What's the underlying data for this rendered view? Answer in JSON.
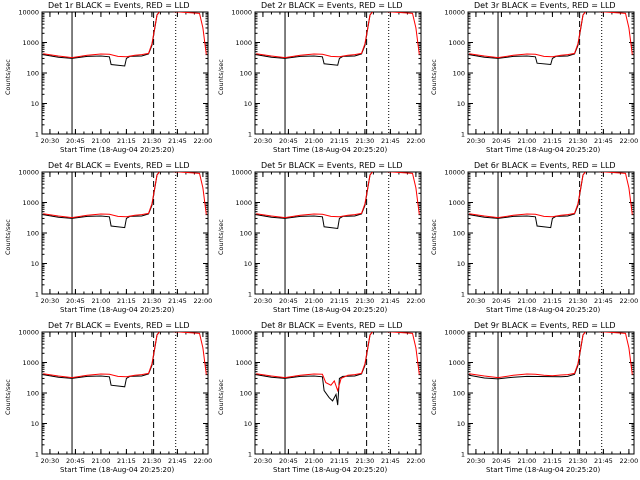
{
  "figure": {
    "xlabel": "Start Time (18-Aug-04 20:25:20)",
    "ylabel": "Counts/sec",
    "x_ticks": [
      "20:30",
      "20:45",
      "21:00",
      "21:15",
      "21:30",
      "21:45",
      "22:00"
    ],
    "y_ticks": [
      "1",
      "10",
      "100",
      "1000",
      "10000"
    ],
    "colors": {
      "events": "#000000",
      "lld": "#ff0000",
      "axes": "#000000"
    }
  },
  "chart_data": [
    {
      "type": "line",
      "title": "Det 1r  BLACK = Events, RED = LLD",
      "xlim": [
        "20:25:20",
        "22:03:00"
      ],
      "ylim": [
        1,
        10000
      ],
      "yscale": "log",
      "markers": {
        "solid": "20:43",
        "dashed": "21:31",
        "dotted": "21:44"
      },
      "series": [
        {
          "name": "Events",
          "x": [
            "20:26",
            "20:35",
            "20:43",
            "20:52",
            "21:00",
            "21:05",
            "21:06",
            "21:14",
            "21:15",
            "21:17",
            "21:24",
            "21:28",
            "21:30",
            "21:33",
            "21:35"
          ],
          "values": [
            400,
            330,
            300,
            350,
            360,
            340,
            190,
            170,
            300,
            350,
            360,
            420,
            800,
            8000,
            11000
          ]
        },
        {
          "name": "LLD",
          "x": [
            "20:26",
            "20:35",
            "20:43",
            "20:52",
            "21:00",
            "21:05",
            "21:10",
            "21:15",
            "21:20",
            "21:24",
            "21:28",
            "21:30",
            "21:33",
            "21:35",
            "21:58",
            "22:00",
            "22:02"
          ],
          "values": [
            430,
            360,
            320,
            380,
            420,
            410,
            350,
            340,
            380,
            400,
            440,
            900,
            8000,
            11000,
            9000,
            3000,
            400
          ]
        }
      ]
    },
    {
      "type": "line",
      "title": "Det 2r  BLACK = Events, RED = LLD",
      "xlim": [
        "20:25:20",
        "22:03:00"
      ],
      "ylim": [
        1,
        10000
      ],
      "yscale": "log",
      "markers": {
        "solid": "20:43",
        "dashed": "21:31",
        "dotted": "21:44"
      },
      "series": [
        {
          "name": "Events",
          "x": [
            "20:26",
            "20:35",
            "20:43",
            "20:52",
            "21:00",
            "21:05",
            "21:06",
            "21:14",
            "21:15",
            "21:17",
            "21:24",
            "21:28",
            "21:30",
            "21:33",
            "21:35"
          ],
          "values": [
            400,
            330,
            300,
            350,
            360,
            340,
            200,
            180,
            300,
            350,
            360,
            420,
            800,
            8000,
            11000
          ]
        },
        {
          "name": "LLD",
          "x": [
            "20:26",
            "20:35",
            "20:43",
            "20:52",
            "21:00",
            "21:05",
            "21:10",
            "21:15",
            "21:20",
            "21:24",
            "21:28",
            "21:30",
            "21:33",
            "21:35",
            "21:58",
            "22:00",
            "22:02"
          ],
          "values": [
            430,
            360,
            320,
            380,
            420,
            410,
            350,
            340,
            380,
            400,
            440,
            900,
            8000,
            11000,
            9000,
            3000,
            400
          ]
        }
      ]
    },
    {
      "type": "line",
      "title": "Det 3r  BLACK = Events, RED = LLD",
      "xlim": [
        "20:25:20",
        "22:03:00"
      ],
      "ylim": [
        1,
        10000
      ],
      "yscale": "log",
      "markers": {
        "solid": "20:43",
        "dashed": "21:31",
        "dotted": "21:44"
      },
      "series": [
        {
          "name": "Events",
          "x": [
            "20:26",
            "20:35",
            "20:43",
            "20:52",
            "21:00",
            "21:05",
            "21:06",
            "21:14",
            "21:15",
            "21:17",
            "21:24",
            "21:28",
            "21:30",
            "21:33",
            "21:35"
          ],
          "values": [
            400,
            330,
            300,
            350,
            360,
            340,
            210,
            190,
            300,
            350,
            360,
            420,
            800,
            8000,
            11000
          ]
        },
        {
          "name": "LLD",
          "x": [
            "20:26",
            "20:35",
            "20:43",
            "20:52",
            "21:00",
            "21:05",
            "21:10",
            "21:15",
            "21:20",
            "21:24",
            "21:28",
            "21:30",
            "21:33",
            "21:35",
            "21:58",
            "22:00",
            "22:02"
          ],
          "values": [
            430,
            360,
            320,
            380,
            420,
            410,
            350,
            340,
            380,
            400,
            440,
            900,
            8000,
            11000,
            9000,
            3000,
            400
          ]
        }
      ]
    },
    {
      "type": "line",
      "title": "Det 4r  BLACK = Events, RED = LLD",
      "xlim": [
        "20:25:20",
        "22:03:00"
      ],
      "ylim": [
        1,
        10000
      ],
      "yscale": "log",
      "markers": {
        "solid": "20:43",
        "dashed": "21:31",
        "dotted": "21:44"
      },
      "series": [
        {
          "name": "Events",
          "x": [
            "20:26",
            "20:35",
            "20:43",
            "20:52",
            "21:00",
            "21:05",
            "21:06",
            "21:14",
            "21:15",
            "21:17",
            "21:24",
            "21:28",
            "21:30",
            "21:33",
            "21:35"
          ],
          "values": [
            400,
            330,
            300,
            350,
            360,
            340,
            170,
            150,
            300,
            350,
            360,
            420,
            800,
            8000,
            11000
          ]
        },
        {
          "name": "LLD",
          "x": [
            "20:26",
            "20:35",
            "20:43",
            "20:52",
            "21:00",
            "21:05",
            "21:10",
            "21:15",
            "21:20",
            "21:24",
            "21:28",
            "21:30",
            "21:33",
            "21:35",
            "21:58",
            "22:00",
            "22:02"
          ],
          "values": [
            430,
            360,
            320,
            380,
            420,
            410,
            350,
            340,
            380,
            400,
            440,
            900,
            8000,
            11000,
            9000,
            3000,
            400
          ]
        }
      ]
    },
    {
      "type": "line",
      "title": "Det 5r  BLACK = Events, RED = LLD",
      "xlim": [
        "20:25:20",
        "22:03:00"
      ],
      "ylim": [
        1,
        10000
      ],
      "yscale": "log",
      "markers": {
        "solid": "20:43",
        "dashed": "21:31",
        "dotted": "21:44"
      },
      "series": [
        {
          "name": "Events",
          "x": [
            "20:26",
            "20:35",
            "20:43",
            "20:52",
            "21:00",
            "21:05",
            "21:06",
            "21:14",
            "21:15",
            "21:17",
            "21:24",
            "21:28",
            "21:30",
            "21:33",
            "21:35"
          ],
          "values": [
            400,
            330,
            300,
            350,
            360,
            340,
            160,
            140,
            300,
            350,
            360,
            420,
            800,
            8000,
            11000
          ]
        },
        {
          "name": "LLD",
          "x": [
            "20:26",
            "20:35",
            "20:43",
            "20:52",
            "21:00",
            "21:05",
            "21:10",
            "21:15",
            "21:20",
            "21:24",
            "21:28",
            "21:30",
            "21:33",
            "21:35",
            "21:58",
            "22:00",
            "22:02"
          ],
          "values": [
            430,
            360,
            320,
            380,
            420,
            410,
            350,
            340,
            380,
            400,
            440,
            900,
            8000,
            11000,
            9000,
            3000,
            400
          ]
        }
      ]
    },
    {
      "type": "line",
      "title": "Det 6r  BLACK = Events, RED = LLD",
      "xlim": [
        "20:25:20",
        "22:03:00"
      ],
      "ylim": [
        1,
        10000
      ],
      "yscale": "log",
      "markers": {
        "solid": "20:43",
        "dashed": "21:31",
        "dotted": "21:44"
      },
      "series": [
        {
          "name": "Events",
          "x": [
            "20:26",
            "20:35",
            "20:43",
            "20:52",
            "21:00",
            "21:05",
            "21:06",
            "21:14",
            "21:15",
            "21:17",
            "21:24",
            "21:28",
            "21:30",
            "21:33",
            "21:35"
          ],
          "values": [
            400,
            330,
            300,
            350,
            360,
            340,
            170,
            150,
            300,
            350,
            360,
            420,
            800,
            8000,
            11000
          ]
        },
        {
          "name": "LLD",
          "x": [
            "20:26",
            "20:35",
            "20:43",
            "20:52",
            "21:00",
            "21:05",
            "21:10",
            "21:15",
            "21:20",
            "21:24",
            "21:28",
            "21:30",
            "21:33",
            "21:35",
            "21:58",
            "22:00",
            "22:02"
          ],
          "values": [
            430,
            360,
            320,
            380,
            420,
            410,
            350,
            340,
            380,
            400,
            440,
            900,
            8000,
            11000,
            9000,
            3000,
            400
          ]
        }
      ]
    },
    {
      "type": "line",
      "title": "Det 7r  BLACK = Events, RED = LLD",
      "xlim": [
        "20:25:20",
        "22:03:00"
      ],
      "ylim": [
        1,
        10000
      ],
      "yscale": "log",
      "markers": {
        "solid": "20:43",
        "dashed": "21:31",
        "dotted": "21:44"
      },
      "series": [
        {
          "name": "Events",
          "x": [
            "20:26",
            "20:35",
            "20:43",
            "20:52",
            "21:00",
            "21:05",
            "21:06",
            "21:14",
            "21:15",
            "21:17",
            "21:24",
            "21:28",
            "21:30",
            "21:33",
            "21:35"
          ],
          "values": [
            400,
            330,
            300,
            350,
            360,
            340,
            180,
            160,
            300,
            350,
            360,
            420,
            800,
            8000,
            11000
          ]
        },
        {
          "name": "LLD",
          "x": [
            "20:26",
            "20:35",
            "20:43",
            "20:52",
            "21:00",
            "21:05",
            "21:10",
            "21:15",
            "21:20",
            "21:24",
            "21:28",
            "21:30",
            "21:33",
            "21:35",
            "21:58",
            "22:00",
            "22:02"
          ],
          "values": [
            430,
            360,
            320,
            380,
            420,
            410,
            350,
            340,
            380,
            400,
            440,
            900,
            8000,
            11000,
            9000,
            3000,
            400
          ]
        }
      ]
    },
    {
      "type": "line",
      "title": "Det 8r  BLACK = Events, RED = LLD",
      "xlim": [
        "20:25:20",
        "22:03:00"
      ],
      "ylim": [
        1,
        10000
      ],
      "yscale": "log",
      "markers": {
        "solid": "20:43",
        "dashed": "21:31",
        "dotted": "21:44"
      },
      "series": [
        {
          "name": "Events",
          "x": [
            "20:26",
            "20:35",
            "20:43",
            "20:52",
            "21:00",
            "21:05",
            "21:06",
            "21:09",
            "21:11",
            "21:13",
            "21:14",
            "21:15",
            "21:17",
            "21:24",
            "21:28",
            "21:30",
            "21:33",
            "21:35"
          ],
          "values": [
            400,
            330,
            300,
            350,
            360,
            340,
            120,
            70,
            55,
            90,
            40,
            300,
            350,
            360,
            420,
            800,
            8000,
            11000
          ]
        },
        {
          "name": "LLD",
          "x": [
            "20:26",
            "20:35",
            "20:43",
            "20:52",
            "21:00",
            "21:05",
            "21:07",
            "21:10",
            "21:12",
            "21:14",
            "21:16",
            "21:20",
            "21:24",
            "21:28",
            "21:30",
            "21:33",
            "21:35",
            "21:58",
            "22:00",
            "22:02"
          ],
          "values": [
            430,
            360,
            320,
            380,
            420,
            410,
            220,
            180,
            250,
            120,
            300,
            380,
            400,
            440,
            900,
            8000,
            11000,
            9000,
            3000,
            400
          ]
        }
      ]
    },
    {
      "type": "line",
      "title": "Det 9r  BLACK = Events, RED = LLD",
      "xlim": [
        "20:25:20",
        "22:03:00"
      ],
      "ylim": [
        1,
        10000
      ],
      "yscale": "log",
      "markers": {
        "solid": "20:43",
        "dashed": "21:31",
        "dotted": "21:44"
      },
      "series": [
        {
          "name": "Events",
          "x": [
            "20:26",
            "20:35",
            "20:43",
            "20:52",
            "21:00",
            "21:20",
            "21:24",
            "21:28",
            "21:30",
            "21:33",
            "21:35"
          ],
          "values": [
            380,
            310,
            290,
            330,
            350,
            340,
            350,
            410,
            800,
            8000,
            11000
          ]
        },
        {
          "name": "LLD",
          "x": [
            "20:26",
            "20:35",
            "20:43",
            "20:52",
            "21:00",
            "21:05",
            "21:10",
            "21:15",
            "21:20",
            "21:24",
            "21:28",
            "21:30",
            "21:33",
            "21:35",
            "21:58",
            "22:00",
            "22:02"
          ],
          "values": [
            430,
            360,
            320,
            380,
            420,
            410,
            380,
            370,
            390,
            400,
            440,
            900,
            8000,
            11000,
            9000,
            3000,
            400
          ]
        }
      ]
    }
  ]
}
